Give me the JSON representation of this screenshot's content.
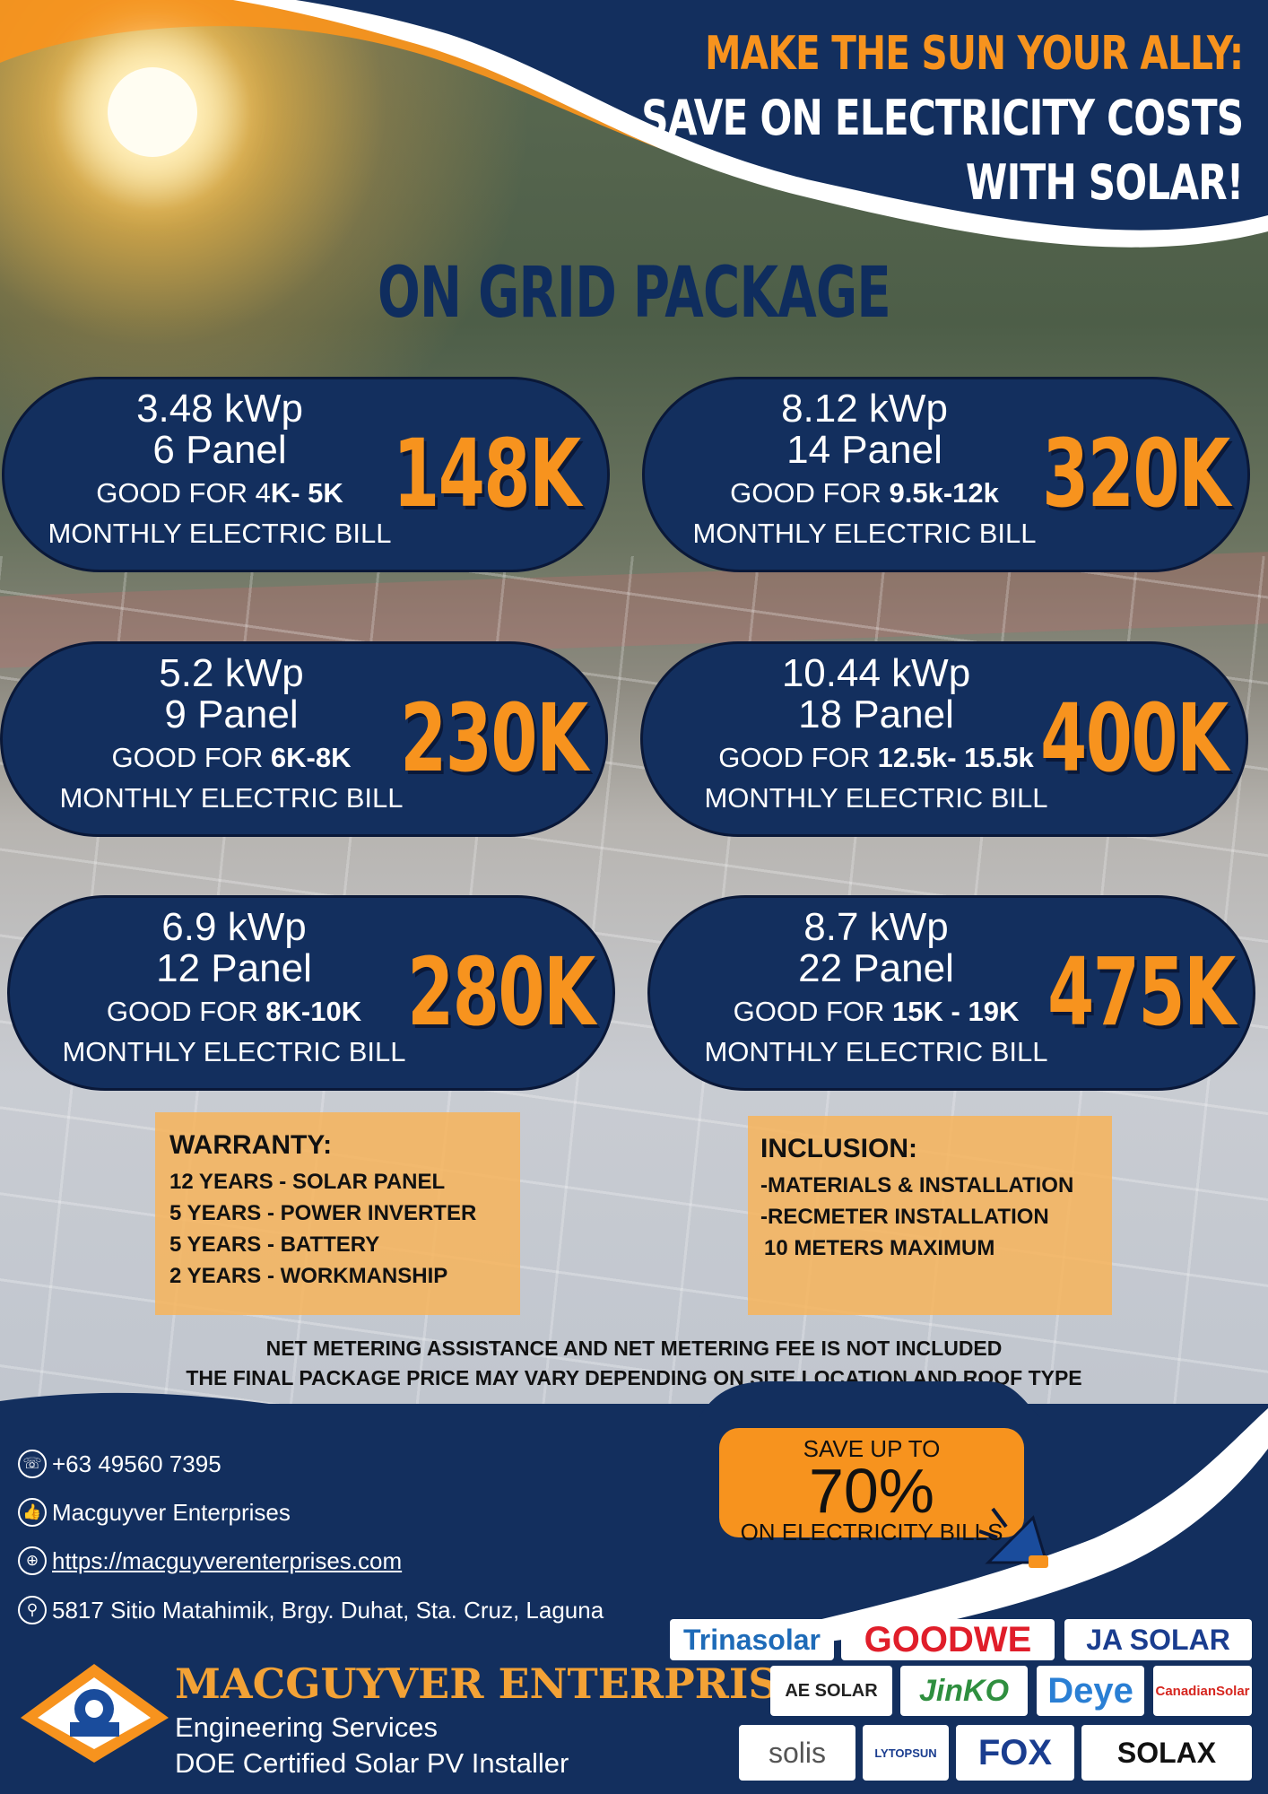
{
  "header": {
    "line1": "MAKE THE SUN YOUR ALLY:",
    "line2": "SAVE ON ELECTRICITY COSTS",
    "line3": "WITH SOLAR!"
  },
  "package_title": "ON GRID PACKAGE",
  "packages": [
    {
      "kwp": "3.48 kWp",
      "panels": "6 Panel",
      "good_prefix": "GOOD FOR 4",
      "good_range": "K- 5K",
      "bill": "MONTHLY ELECTRIC BILL",
      "price": "148K"
    },
    {
      "kwp": "8.12 kWp",
      "panels": "14 Panel",
      "good_prefix": "GOOD FOR ",
      "good_range": "9.5k-12k",
      "bill": "MONTHLY ELECTRIC BILL",
      "price": "320K"
    },
    {
      "kwp": "5.2 kWp",
      "panels": "9 Panel",
      "good_prefix": "GOOD FOR ",
      "good_range": "6K-8K",
      "bill": "MONTHLY ELECTRIC BILL",
      "price": "230K"
    },
    {
      "kwp": "10.44 kWp",
      "panels": "18 Panel",
      "good_prefix": "GOOD FOR ",
      "good_range": "12.5k- 15.5k",
      "bill": "MONTHLY ELECTRIC BILL",
      "price": "400K"
    },
    {
      "kwp": "6.9 kWp",
      "panels": "12 Panel",
      "good_prefix": "GOOD FOR ",
      "good_range": "8K-10K",
      "bill": "MONTHLY ELECTRIC BILL",
      "price": "280K"
    },
    {
      "kwp": "8.7 kWp",
      "panels": "22 Panel",
      "good_prefix": "GOOD FOR ",
      "good_range": "15K - 19K",
      "bill": "MONTHLY ELECTRIC BILL",
      "price": "475K"
    }
  ],
  "warranty": {
    "title": "WARRANTY:",
    "items": [
      "12 YEARS - SOLAR PANEL",
      "5 YEARS - POWER INVERTER",
      "5 YEARS - BATTERY",
      "2 YEARS - WORKMANSHIP"
    ]
  },
  "inclusion": {
    "title": "INCLUSION:",
    "items": [
      "-MATERIALS & INSTALLATION",
      "-RECMETER INSTALLATION",
      "10 METERS MAXIMUM"
    ]
  },
  "disclaimer": {
    "line1": "NET METERING ASSISTANCE AND NET METERING FEE IS NOT INCLUDED",
    "line2": "THE FINAL PACKAGE PRICE MAY VARY DEPENDING ON SITE LOCATION AND ROOF TYPE"
  },
  "contact": {
    "phone": "+63 49560 7395",
    "facebook": "Macguyver Enterprises",
    "website": "https://macguyverenterprises.com",
    "address": "5817 Sitio Matahimik, Brgy. Duhat, Sta. Cruz, Laguna"
  },
  "promo": {
    "line1": "SAVE UP TO",
    "percent": "70%",
    "line2": "ON ELECTRICITY BILLS"
  },
  "company": {
    "name": "MACGUYVER ENTERPRISES",
    "tagline1": "Engineering Services",
    "tagline2": "DOE Certified Solar PV Installer",
    "logo_text": "MACGUYVER ENTERPRISES"
  },
  "brands": [
    "Trinasolar",
    "GOODWE",
    "JA SOLAR",
    "AE SOLAR",
    "JinKO",
    "Deye",
    "CanadianSolar",
    "solis",
    "LYTOPSUN",
    "FOX",
    "SOLAX"
  ],
  "colors": {
    "navy": "#132f5e",
    "orange": "#f7931e",
    "note_bg": "#f7b45a"
  }
}
